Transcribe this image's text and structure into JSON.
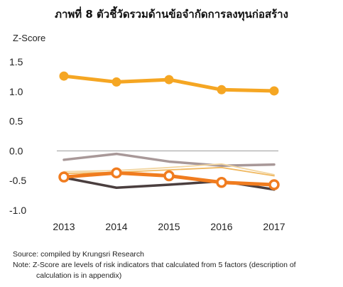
{
  "chart_data": {
    "type": "line",
    "title": "ภาพที่ 8 ตัวชี้วัดรวมด้านข้อจำกัดการลงทุนก่อสร้าง",
    "ylabel": "Z-Score",
    "xlabel": "",
    "x": [
      "2013",
      "2014",
      "2015",
      "2016",
      "2017"
    ],
    "ylim": [
      -1.0,
      1.5
    ],
    "yticks": [
      "1.5",
      "1.0",
      "0.5",
      "0.0",
      "-0.5",
      "-1.0"
    ],
    "ytick_values": [
      1.5,
      1.0,
      0.5,
      0.0,
      -0.5,
      -1.0
    ],
    "grid": false,
    "legend": "none",
    "series": [
      {
        "values": [
          1.26,
          1.16,
          1.2,
          1.03,
          1.01
        ],
        "color": "#f5a623",
        "style": "thick-markers"
      },
      {
        "values": [
          -0.15,
          -0.05,
          -0.18,
          -0.25,
          -0.23
        ],
        "color": "#a89898",
        "style": "medium"
      },
      {
        "values": [
          -0.35,
          -0.33,
          -0.28,
          -0.22,
          -0.4
        ],
        "color": "#f2d5a0",
        "style": "thin"
      },
      {
        "values": [
          -0.38,
          -0.36,
          -0.32,
          -0.28,
          -0.42
        ],
        "color": "#f0b860",
        "style": "thin"
      },
      {
        "values": [
          -0.45,
          -0.62,
          -0.57,
          -0.51,
          -0.65
        ],
        "color": "#4a3e3e",
        "style": "medium"
      },
      {
        "values": [
          -0.44,
          -0.37,
          -0.42,
          -0.53,
          -0.57
        ],
        "color": "#f07c1f",
        "style": "thick-hollow"
      }
    ]
  },
  "footer": {
    "source": "Source: compiled by Krungsri Research",
    "note_line1": "Note: Z-Score are levels of risk indicators that calculated from 5 factors (description of",
    "note_line2": "calculation is in appendix)"
  }
}
